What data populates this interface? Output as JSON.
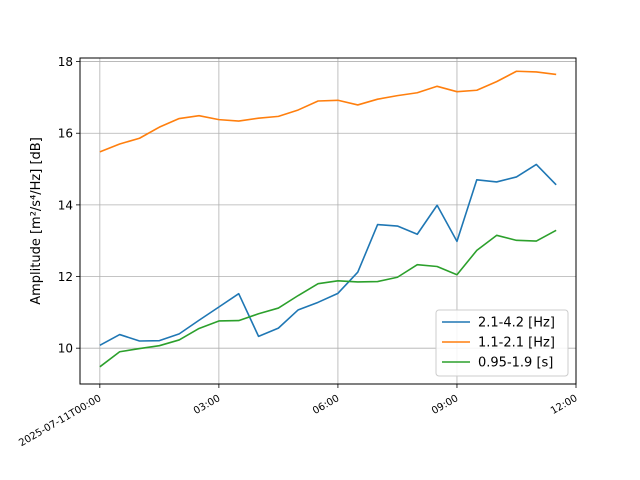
{
  "chart_data": {
    "type": "line",
    "title": "",
    "xlabel": "",
    "ylabel": "Amplitude [m²/s⁴/Hz] [dB]",
    "x": [
      "2025-07-11T00:00",
      "2025-07-11T00:30",
      "2025-07-11T01:00",
      "2025-07-11T01:30",
      "2025-07-11T02:00",
      "2025-07-11T02:30",
      "2025-07-11T03:00",
      "2025-07-11T03:30",
      "2025-07-11T04:00",
      "2025-07-11T04:30",
      "2025-07-11T05:00",
      "2025-07-11T05:30",
      "2025-07-11T06:00",
      "2025-07-11T06:30",
      "2025-07-11T07:00",
      "2025-07-11T07:30",
      "2025-07-11T08:00",
      "2025-07-11T08:30",
      "2025-07-11T09:00",
      "2025-07-11T09:30",
      "2025-07-11T10:00",
      "2025-07-11T10:30",
      "2025-07-11T11:00",
      "2025-07-11T11:30"
    ],
    "xticks": [
      {
        "value": "2025-07-11T00:00",
        "label": "2025-07-11T00:00"
      },
      {
        "value": "2025-07-11T03:00",
        "label": "03:00"
      },
      {
        "value": "2025-07-11T06:00",
        "label": "06:00"
      },
      {
        "value": "2025-07-11T09:00",
        "label": "09:00"
      },
      {
        "value": "2025-07-11T12:00",
        "label": "12:00"
      }
    ],
    "xlim": [
      "2025-07-10T23:30",
      "2025-07-11T12:00"
    ],
    "yticks": [
      10,
      12,
      14,
      16,
      18
    ],
    "ylim": [
      9.0,
      18.1
    ],
    "grid": true,
    "legend_position": "lower-right",
    "series": [
      {
        "name": "2.1-4.2 [Hz]",
        "color": "#1f77b4",
        "values": [
          10.08,
          10.38,
          10.2,
          10.21,
          10.4,
          10.78,
          11.15,
          11.52,
          10.33,
          10.56,
          11.07,
          11.28,
          11.53,
          12.12,
          13.45,
          13.41,
          13.18,
          13.99,
          12.98,
          14.7,
          14.64,
          14.78,
          15.13,
          14.56
        ]
      },
      {
        "name": "1.1-2.1 [Hz]",
        "color": "#ff7f0e",
        "values": [
          15.48,
          15.7,
          15.86,
          16.17,
          16.41,
          16.49,
          16.38,
          16.34,
          16.42,
          16.47,
          16.65,
          16.9,
          16.92,
          16.79,
          16.95,
          17.05,
          17.13,
          17.31,
          17.16,
          17.2,
          17.44,
          17.73,
          17.71,
          17.64
        ]
      },
      {
        "name": "0.95-1.9 [s]",
        "color": "#2ca02c",
        "values": [
          9.48,
          9.9,
          9.99,
          10.07,
          10.23,
          10.55,
          10.76,
          10.77,
          10.96,
          11.12,
          11.47,
          11.8,
          11.88,
          11.85,
          11.86,
          11.98,
          12.33,
          12.28,
          12.05,
          12.73,
          13.15,
          13.01,
          12.99,
          13.29
        ]
      }
    ]
  }
}
